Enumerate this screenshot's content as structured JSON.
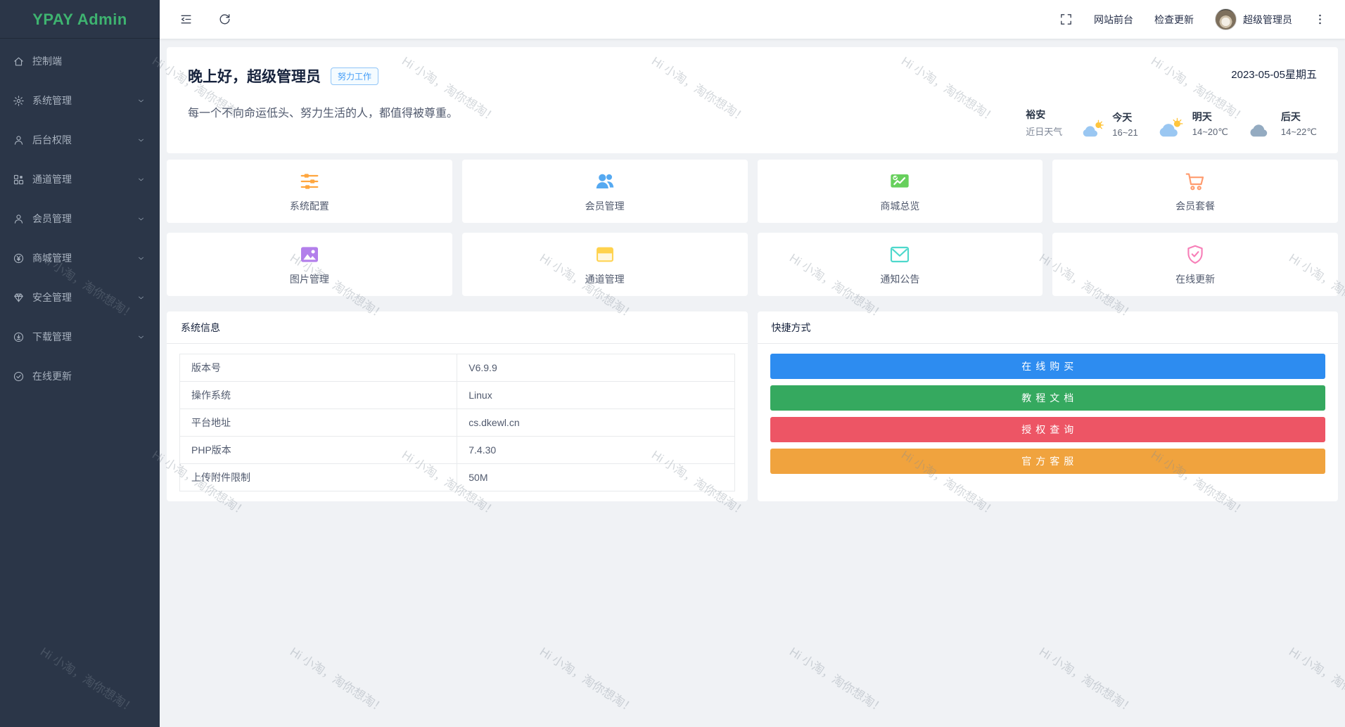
{
  "app": {
    "logo": "YPAY Admin"
  },
  "theme": {
    "sidebar_bg": "#2b3648",
    "logo_green": "#3eb370",
    "badge_blue": "#459ef7",
    "content_bg": "#f0f2f5"
  },
  "sidebar": {
    "items": [
      {
        "label": "控制端",
        "icon": "home-icon",
        "has_submenu": false
      },
      {
        "label": "系统管理",
        "icon": "gear-icon",
        "has_submenu": true
      },
      {
        "label": "后台权限",
        "icon": "user-icon",
        "has_submenu": true
      },
      {
        "label": "通道管理",
        "icon": "modules-icon",
        "has_submenu": true
      },
      {
        "label": "会员管理",
        "icon": "user-icon",
        "has_submenu": true
      },
      {
        "label": "商城管理",
        "icon": "yen-circle-icon",
        "has_submenu": true
      },
      {
        "label": "安全管理",
        "icon": "gem-shield-icon",
        "has_submenu": true
      },
      {
        "label": "下载管理",
        "icon": "download-circle-icon",
        "has_submenu": true
      },
      {
        "label": "在线更新",
        "icon": "check-circle-icon",
        "has_submenu": false
      }
    ]
  },
  "topbar": {
    "frontend": "网站前台",
    "check_update": "检查更新",
    "username": "超级管理员"
  },
  "hero": {
    "greeting": "晚上好，超级管理员",
    "badge": "努力工作",
    "motto": "每一个不向命运低头、努力生活的人，都值得被尊重。",
    "date": "2023-05-05星期五",
    "weather": {
      "city": "裕安",
      "city_sub": "近日天气",
      "days": [
        {
          "name": "今天",
          "temp": "16~21",
          "icon": "sun-small-cloud-icon"
        },
        {
          "name": "明天",
          "temp": "14~20℃",
          "icon": "sun-cloud-icon"
        },
        {
          "name": "后天",
          "temp": "14~22℃",
          "icon": "cloud-icon"
        }
      ]
    }
  },
  "cards": [
    {
      "label": "系统配置",
      "icon": "sliders-icon",
      "color": "#ffa63e"
    },
    {
      "label": "会员管理",
      "icon": "users-icon",
      "color": "#55a9f1"
    },
    {
      "label": "商城总览",
      "icon": "chart-board-icon",
      "color": "#67d05c"
    },
    {
      "label": "会员套餐",
      "icon": "cart-icon",
      "color": "#ff9b6e"
    },
    {
      "label": "图片管理",
      "icon": "image-icon",
      "color": "#b37feb"
    },
    {
      "label": "通道管理",
      "icon": "browser-icon",
      "color": "#ffd24d"
    },
    {
      "label": "通知公告",
      "icon": "mail-icon",
      "color": "#4ed8cc"
    },
    {
      "label": "在线更新",
      "icon": "shield-check-icon",
      "color": "#f77fb8"
    }
  ],
  "system_info": {
    "title": "系统信息",
    "rows": [
      {
        "label": "版本号",
        "value": "V6.9.9"
      },
      {
        "label": "操作系统",
        "value": "Linux"
      },
      {
        "label": "平台地址",
        "value": "cs.dkewl.cn"
      },
      {
        "label": "PHP版本",
        "value": "7.4.30"
      },
      {
        "label": "上传附件限制",
        "value": "50M"
      }
    ]
  },
  "quick_links": {
    "title": "快捷方式",
    "buttons": [
      {
        "label": "在线购买",
        "color": "#2d8cf0"
      },
      {
        "label": "教程文档",
        "color": "#35a95f"
      },
      {
        "label": "授权查询",
        "color": "#ed5565"
      },
      {
        "label": "官方客服",
        "color": "#f0a33e"
      }
    ]
  },
  "watermark": {
    "text": "Hi 小淘，淘你想淘！"
  }
}
